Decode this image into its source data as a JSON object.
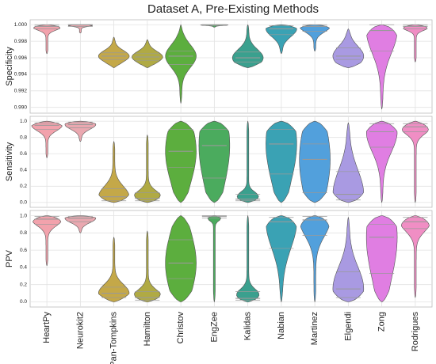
{
  "chart_data": {
    "type": "violin",
    "title": "Dataset A, Pre-Existing Methods",
    "categories": [
      "HeartPy",
      "Neurokit2",
      "Pan-Tompkins",
      "Hamilton",
      "Christov",
      "EngZee",
      "Kalidas",
      "Nabian",
      "Martinez",
      "Elgendi",
      "Zong",
      "Rodrigues"
    ],
    "colors": [
      "#f2a2ac",
      "#eaa8b0",
      "#c4a848",
      "#b0aa44",
      "#5cae3e",
      "#4bab5e",
      "#3aa08e",
      "#3aa2b4",
      "#52a0dc",
      "#a99ae2",
      "#e07ee2",
      "#f08ec4"
    ],
    "grid": true,
    "panels": [
      {
        "ylabel": "Specificity",
        "ylim": [
          0.9893,
          1.0006
        ],
        "yticks": [
          {
            "value": 0.99,
            "label": "0.990"
          },
          0.992,
          0.994,
          0.996,
          0.998,
          {
            "value": 1.0,
            "label": "1.000"
          }
        ],
        "min": [
          0.9965,
          0.999,
          0.9948,
          0.9948,
          0.9905,
          0.9997,
          0.9948,
          0.9965,
          0.9968,
          0.9948,
          0.9898,
          0.9955
        ],
        "q1": [
          0.9995,
          0.9998,
          0.9958,
          0.9957,
          0.9952,
          0.9999,
          0.9955,
          0.9988,
          0.9992,
          0.9958,
          0.9968,
          0.9995
        ],
        "median": [
          0.9998,
          1.0,
          0.9962,
          0.9961,
          0.9962,
          1.0,
          0.996,
          0.9995,
          0.9998,
          0.9962,
          0.9993,
          0.9998
        ],
        "q3": [
          1.0,
          1.0,
          0.9966,
          0.9965,
          0.9968,
          1.0,
          0.9967,
          0.9999,
          1.0,
          0.9972,
          1.0,
          1.0
        ],
        "max": [
          1.0,
          1.0,
          0.9985,
          0.9982,
          1.0,
          1.0,
          1.0,
          1.0,
          1.0,
          0.9995,
          1.0,
          1.0
        ]
      },
      {
        "ylabel": "Sensitivity",
        "ylim": [
          -0.06,
          1.06
        ],
        "yticks": [
          {
            "value": 0.0,
            "label": "0.0"
          },
          0.2,
          0.4,
          0.6,
          0.8,
          {
            "value": 1.0,
            "label": "1.0"
          }
        ],
        "min": [
          0.55,
          0.75,
          0.0,
          0.0,
          0.0,
          0.0,
          0.0,
          0.0,
          0.0,
          0.0,
          0.0,
          0.0
        ],
        "q1": [
          0.9,
          0.92,
          0.02,
          0.02,
          0.43,
          0.3,
          0.02,
          0.35,
          0.12,
          0.03,
          0.68,
          0.87
        ],
        "median": [
          0.95,
          0.96,
          0.07,
          0.05,
          0.63,
          0.7,
          0.04,
          0.72,
          0.53,
          0.1,
          0.87,
          0.93
        ],
        "q3": [
          0.98,
          0.99,
          0.17,
          0.12,
          0.9,
          0.9,
          0.1,
          0.9,
          0.72,
          0.38,
          0.97,
          0.97
        ],
        "max": [
          1.0,
          1.0,
          0.75,
          0.83,
          1.0,
          1.0,
          1.0,
          1.0,
          1.0,
          0.98,
          1.0,
          1.0
        ]
      },
      {
        "ylabel": "PPV",
        "ylim": [
          -0.06,
          1.06
        ],
        "yticks": [
          {
            "value": 0.0,
            "label": "0.0"
          },
          0.2,
          0.4,
          0.6,
          0.8,
          {
            "value": 1.0,
            "label": "1.0"
          }
        ],
        "min": [
          0.42,
          0.8,
          0.0,
          0.0,
          0.0,
          0.0,
          0.0,
          0.0,
          0.0,
          0.0,
          0.0,
          0.05
        ],
        "q1": [
          0.9,
          0.93,
          0.05,
          0.02,
          0.27,
          0.97,
          0.02,
          0.62,
          0.77,
          0.05,
          0.33,
          0.85
        ],
        "median": [
          0.96,
          0.97,
          0.1,
          0.05,
          0.45,
          0.99,
          0.04,
          0.93,
          0.95,
          0.15,
          0.75,
          0.93
        ],
        "q3": [
          0.99,
          0.99,
          0.17,
          0.12,
          0.72,
          1.0,
          0.12,
          0.98,
          0.99,
          0.35,
          0.9,
          0.98
        ],
        "max": [
          1.0,
          1.0,
          0.75,
          0.82,
          1.0,
          1.0,
          1.0,
          1.0,
          1.0,
          0.98,
          1.0,
          1.0
        ]
      }
    ]
  }
}
